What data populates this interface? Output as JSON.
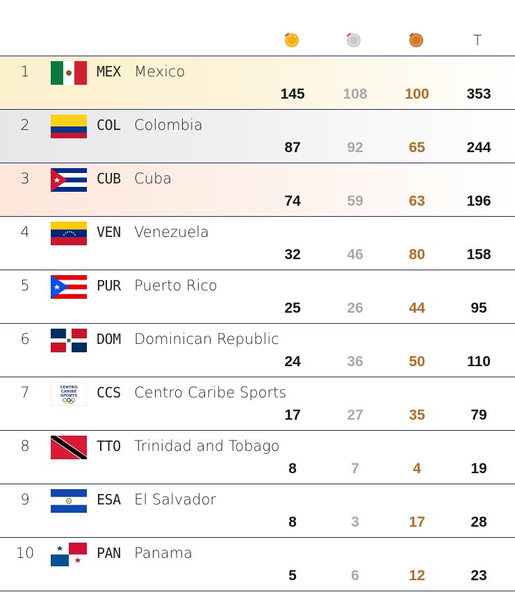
{
  "header": {
    "gold_icon": "gold-medal-icon",
    "silver_icon": "silver-medal-icon",
    "bronze_icon": "bronze-medal-icon",
    "total_label": "T"
  },
  "colors": {
    "gold": "#f1a800",
    "silver": "#c8c8c8",
    "bronze": "#cf7a2c",
    "divider": "#1f2a6b",
    "bronze_text": "#b36a23"
  },
  "rows": [
    {
      "rank": "1",
      "code": "MEX",
      "name": "Mexico",
      "gold": "145",
      "silver": "108",
      "bronze": "100",
      "total": "353",
      "flag": "mexico-flag-icon"
    },
    {
      "rank": "2",
      "code": "COL",
      "name": "Colombia",
      "gold": "87",
      "silver": "92",
      "bronze": "65",
      "total": "244",
      "flag": "colombia-flag-icon"
    },
    {
      "rank": "3",
      "code": "CUB",
      "name": "Cuba",
      "gold": "74",
      "silver": "59",
      "bronze": "63",
      "total": "196",
      "flag": "cuba-flag-icon"
    },
    {
      "rank": "4",
      "code": "VEN",
      "name": "Venezuela",
      "gold": "32",
      "silver": "46",
      "bronze": "80",
      "total": "158",
      "flag": "venezuela-flag-icon"
    },
    {
      "rank": "5",
      "code": "PUR",
      "name": "Puerto Rico",
      "gold": "25",
      "silver": "26",
      "bronze": "44",
      "total": "95",
      "flag": "puerto-rico-flag-icon"
    },
    {
      "rank": "6",
      "code": "DOM",
      "name": "Dominican Republic",
      "gold": "24",
      "silver": "36",
      "bronze": "50",
      "total": "110",
      "flag": "dominican-republic-flag-icon"
    },
    {
      "rank": "7",
      "code": "CCS",
      "name": "Centro Caribe Sports",
      "gold": "17",
      "silver": "27",
      "bronze": "35",
      "total": "79",
      "flag": "centro-caribe-sports-logo"
    },
    {
      "rank": "8",
      "code": "TTO",
      "name": "Trinidad and Tobago",
      "gold": "8",
      "silver": "7",
      "bronze": "4",
      "total": "19",
      "flag": "trinidad-and-tobago-flag-icon"
    },
    {
      "rank": "9",
      "code": "ESA",
      "name": "El Salvador",
      "gold": "8",
      "silver": "3",
      "bronze": "17",
      "total": "28",
      "flag": "el-salvador-flag-icon"
    },
    {
      "rank": "10",
      "code": "PAN",
      "name": "Panama",
      "gold": "5",
      "silver": "6",
      "bronze": "12",
      "total": "23",
      "flag": "panama-flag-icon"
    }
  ],
  "logo_text": {
    "line1": "CENTRO",
    "line2": "CARIBE",
    "line3": "SPORTS"
  }
}
